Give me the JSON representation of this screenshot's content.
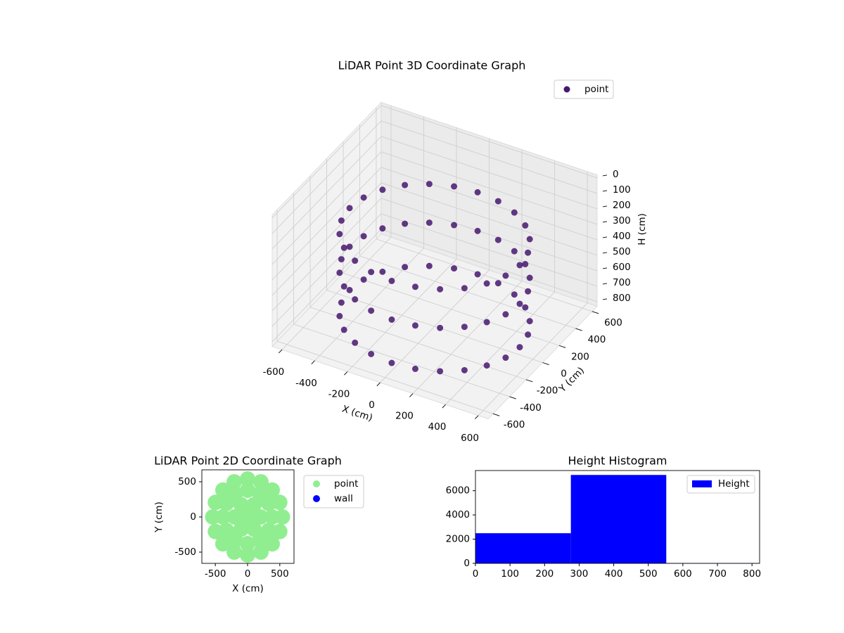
{
  "chart_data": [
    {
      "type": "scatter3d",
      "title": "LiDAR Point 3D Coordinate Graph",
      "xlabel": "X (cm)",
      "ylabel": "Y (cm)",
      "zlabel": "H (cm)",
      "xlim": [
        -660,
        660
      ],
      "ylim": [
        -660,
        660
      ],
      "zlim": [
        -20,
        830
      ],
      "xticks": [
        -600,
        -400,
        -200,
        0,
        200,
        400,
        600
      ],
      "yticks": [
        -600,
        -400,
        -200,
        0,
        200,
        400,
        600
      ],
      "zticks": [
        0,
        100,
        200,
        300,
        400,
        500,
        600,
        700,
        800
      ],
      "z_inverted": true,
      "legend": "upper right",
      "series": [
        {
          "name": "point",
          "color": "#46186f",
          "x": [
            520,
            502,
            450,
            368,
            260,
            135,
            0,
            -135,
            -260,
            -368,
            -450,
            -502,
            -520,
            -502,
            -450,
            -368,
            -260,
            -135,
            0,
            135,
            260,
            368,
            450,
            502,
            520,
            502,
            450,
            368,
            260,
            135,
            0,
            -135,
            -260,
            -368,
            -450,
            -502,
            -520,
            -502,
            -450,
            -368,
            -260,
            -135,
            0,
            135,
            260,
            368,
            450,
            502,
            520,
            502,
            450,
            368,
            260,
            135,
            0,
            -135,
            -260,
            -368,
            -450,
            -502,
            -520,
            -502,
            -450,
            -368,
            -260,
            -135,
            0,
            135,
            260,
            368,
            450,
            502
          ],
          "y": [
            0,
            135,
            260,
            368,
            450,
            502,
            520,
            502,
            450,
            368,
            260,
            135,
            0,
            -135,
            -260,
            -368,
            -450,
            -502,
            -520,
            -502,
            -450,
            -368,
            -260,
            -135,
            0,
            135,
            260,
            368,
            450,
            502,
            520,
            502,
            450,
            368,
            260,
            135,
            0,
            -135,
            -260,
            -368,
            -450,
            -502,
            -520,
            -502,
            -450,
            -368,
            -260,
            -135,
            0,
            135,
            260,
            368,
            450,
            502,
            520,
            502,
            450,
            368,
            260,
            135,
            0,
            -135,
            -260,
            -368,
            -450,
            -502,
            -520,
            -502,
            -450,
            -368,
            -260,
            -135
          ],
          "z": [
            250,
            250,
            250,
            250,
            250,
            250,
            250,
            250,
            250,
            250,
            250,
            250,
            250,
            250,
            250,
            250,
            250,
            250,
            250,
            250,
            250,
            250,
            250,
            250,
            500,
            500,
            500,
            500,
            500,
            500,
            500,
            500,
            500,
            500,
            500,
            500,
            500,
            500,
            500,
            500,
            500,
            500,
            500,
            500,
            500,
            500,
            500,
            500,
            780,
            780,
            780,
            780,
            780,
            780,
            780,
            780,
            780,
            780,
            780,
            780,
            780,
            780,
            780,
            780,
            780,
            780,
            780,
            780,
            780,
            780,
            780,
            780
          ]
        }
      ]
    },
    {
      "type": "scatter",
      "title": "LiDAR Point 2D Coordinate Graph",
      "xlabel": "X (cm)",
      "ylabel": "Y (cm)",
      "xlim": [
        -709,
        720
      ],
      "ylim": [
        -660,
        670
      ],
      "xticks": [
        -500,
        0,
        500
      ],
      "yticks": [
        -500,
        0,
        500
      ],
      "legend": "outside right",
      "series": [
        {
          "name": "point",
          "color": "#90ee90",
          "x": [
            540,
            499,
            382,
            207,
            0,
            -207,
            -382,
            -499,
            -540,
            -499,
            -382,
            -207,
            0,
            207,
            382,
            499,
            380,
            329,
            190,
            0,
            -190,
            -329,
            -380,
            -329,
            -190,
            0,
            190,
            329,
            200,
            100,
            -100,
            -200,
            -100,
            100,
            0
          ],
          "y": [
            0,
            207,
            382,
            499,
            540,
            499,
            382,
            207,
            0,
            -207,
            -382,
            -499,
            -540,
            -499,
            -382,
            -207,
            0,
            190,
            329,
            380,
            329,
            190,
            0,
            -190,
            -329,
            -380,
            -329,
            -190,
            0,
            173,
            173,
            0,
            -173,
            -173,
            0
          ]
        },
        {
          "name": "wall",
          "color": "#0000ff",
          "x": [],
          "y": []
        }
      ]
    },
    {
      "type": "histogram",
      "title": "Height Histogram",
      "bins": [
        0,
        276,
        552,
        828
      ],
      "xlim": [
        0,
        822
      ],
      "ylim": [
        0,
        7665
      ],
      "xticks": [
        0,
        100,
        200,
        300,
        400,
        500,
        600,
        700,
        800
      ],
      "yticks": [
        0,
        2000,
        4000,
        6000
      ],
      "legend": "upper right",
      "series": [
        {
          "name": "Height",
          "color": "#0000ff",
          "counts": [
            2490,
            7300,
            30
          ]
        }
      ]
    }
  ]
}
